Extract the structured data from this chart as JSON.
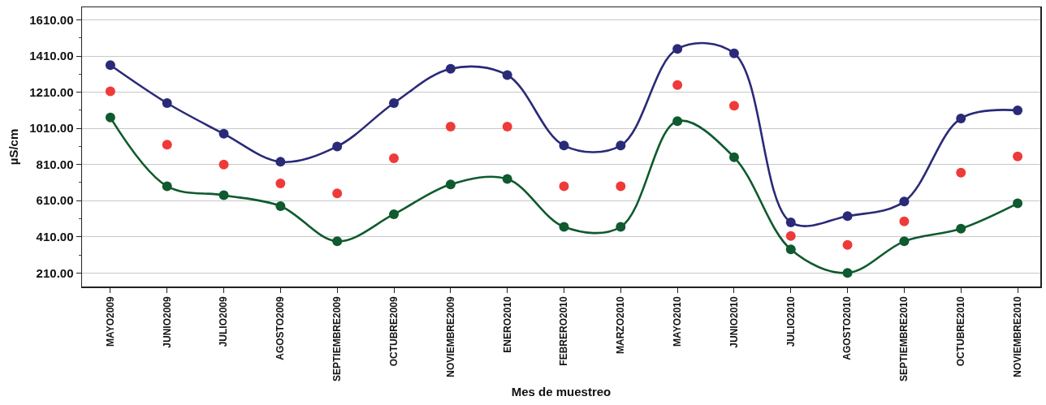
{
  "chart_data": {
    "type": "line",
    "xlabel": "Mes de muestreo",
    "ylabel": "µS/cm",
    "categories": [
      "MAYO2009",
      "JUNIO2009",
      "JULIO2009",
      "AGOSTO2009",
      "SEPTIEMBRE2009",
      "OCTUBRE2009",
      "NOVIEMBRE2009",
      "ENERO2010",
      "FEBRERO2010",
      "MARZO2010",
      "MAYO2010",
      "JUNIO2010",
      "JULIO2010",
      "AGOSTO2010",
      "SEPTIEMBRE2010",
      "OCTUBRE2010",
      "NOVIEMBRE2010"
    ],
    "series": [
      {
        "color": "#2a2a78",
        "values": [
          1360,
          1150,
          980,
          825,
          910,
          1150,
          1340,
          1305,
          915,
          915,
          1450,
          1425,
          490,
          525,
          605,
          1065,
          1110
        ]
      },
      {
        "type": "scatter",
        "color": "#ef3a3a",
        "values": [
          1215,
          920,
          810,
          705,
          650,
          845,
          1020,
          1020,
          690,
          690,
          1250,
          1135,
          415,
          365,
          495,
          765,
          855
        ]
      },
      {
        "color": "#0f5a2e",
        "values": [
          1070,
          690,
          640,
          580,
          385,
          535,
          700,
          730,
          465,
          465,
          1050,
          850,
          340,
          210,
          385,
          455,
          595
        ]
      }
    ],
    "ylim": [
      135,
      1680
    ],
    "yticks": [
      {
        "value": 210,
        "label": "210.00"
      },
      {
        "value": 310,
        "label": null
      },
      {
        "value": 410,
        "label": "410.00"
      },
      {
        "value": 510,
        "label": null
      },
      {
        "value": 610,
        "label": "610.00"
      },
      {
        "value": 710,
        "label": null
      },
      {
        "value": 810,
        "label": "810.00"
      },
      {
        "value": 910,
        "label": null
      },
      {
        "value": 1010,
        "label": "1010.00"
      },
      {
        "value": 1110,
        "label": null
      },
      {
        "value": 1210,
        "label": "1210.00"
      },
      {
        "value": 1310,
        "label": null
      },
      {
        "value": 1410,
        "label": "1410.00"
      },
      {
        "value": 1510,
        "label": null
      },
      {
        "value": 1610,
        "label": "1610.00"
      }
    ],
    "grid": "y",
    "marker": "circle",
    "line_style": "solid"
  }
}
